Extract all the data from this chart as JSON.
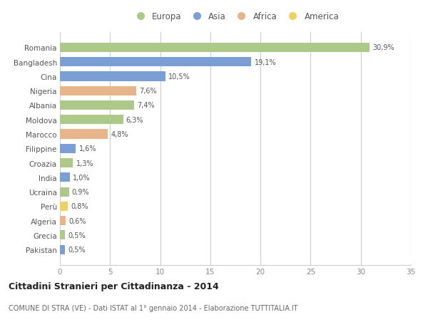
{
  "countries": [
    "Romania",
    "Bangladesh",
    "Cina",
    "Nigeria",
    "Albania",
    "Moldova",
    "Marocco",
    "Filippine",
    "Croazia",
    "India",
    "Ucraina",
    "Perù",
    "Algeria",
    "Grecia",
    "Pakistan"
  ],
  "values": [
    30.9,
    19.1,
    10.5,
    7.6,
    7.4,
    6.3,
    4.8,
    1.6,
    1.3,
    1.0,
    0.9,
    0.8,
    0.6,
    0.5,
    0.5
  ],
  "labels": [
    "30,9%",
    "19,1%",
    "10,5%",
    "7,6%",
    "7,4%",
    "6,3%",
    "4,8%",
    "1,6%",
    "1,3%",
    "1,0%",
    "0,9%",
    "0,8%",
    "0,6%",
    "0,5%",
    "0,5%"
  ],
  "colors": [
    "#adc98a",
    "#7b9fd4",
    "#7b9fd4",
    "#e8b48a",
    "#adc98a",
    "#adc98a",
    "#e8b48a",
    "#7b9fd4",
    "#adc98a",
    "#7b9fd4",
    "#adc98a",
    "#f0d060",
    "#e8b48a",
    "#adc98a",
    "#7b9fd4"
  ],
  "legend_labels": [
    "Europa",
    "Asia",
    "Africa",
    "America"
  ],
  "legend_colors": [
    "#adc98a",
    "#7b9fd4",
    "#e8b48a",
    "#f0d060"
  ],
  "title_bold": "Cittadini Stranieri per Cittadinanza - 2014",
  "subtitle": "COMUNE DI STRA (VE) - Dati ISTAT al 1° gennaio 2014 - Elaborazione TUTTITALIA.IT",
  "xlim": [
    0,
    35
  ],
  "xticks": [
    0,
    5,
    10,
    15,
    20,
    25,
    30,
    35
  ],
  "background_color": "#ffffff",
  "plot_bg_color": "#f5f5f5",
  "grid_color": "#dddddd",
  "bar_height": 0.65
}
